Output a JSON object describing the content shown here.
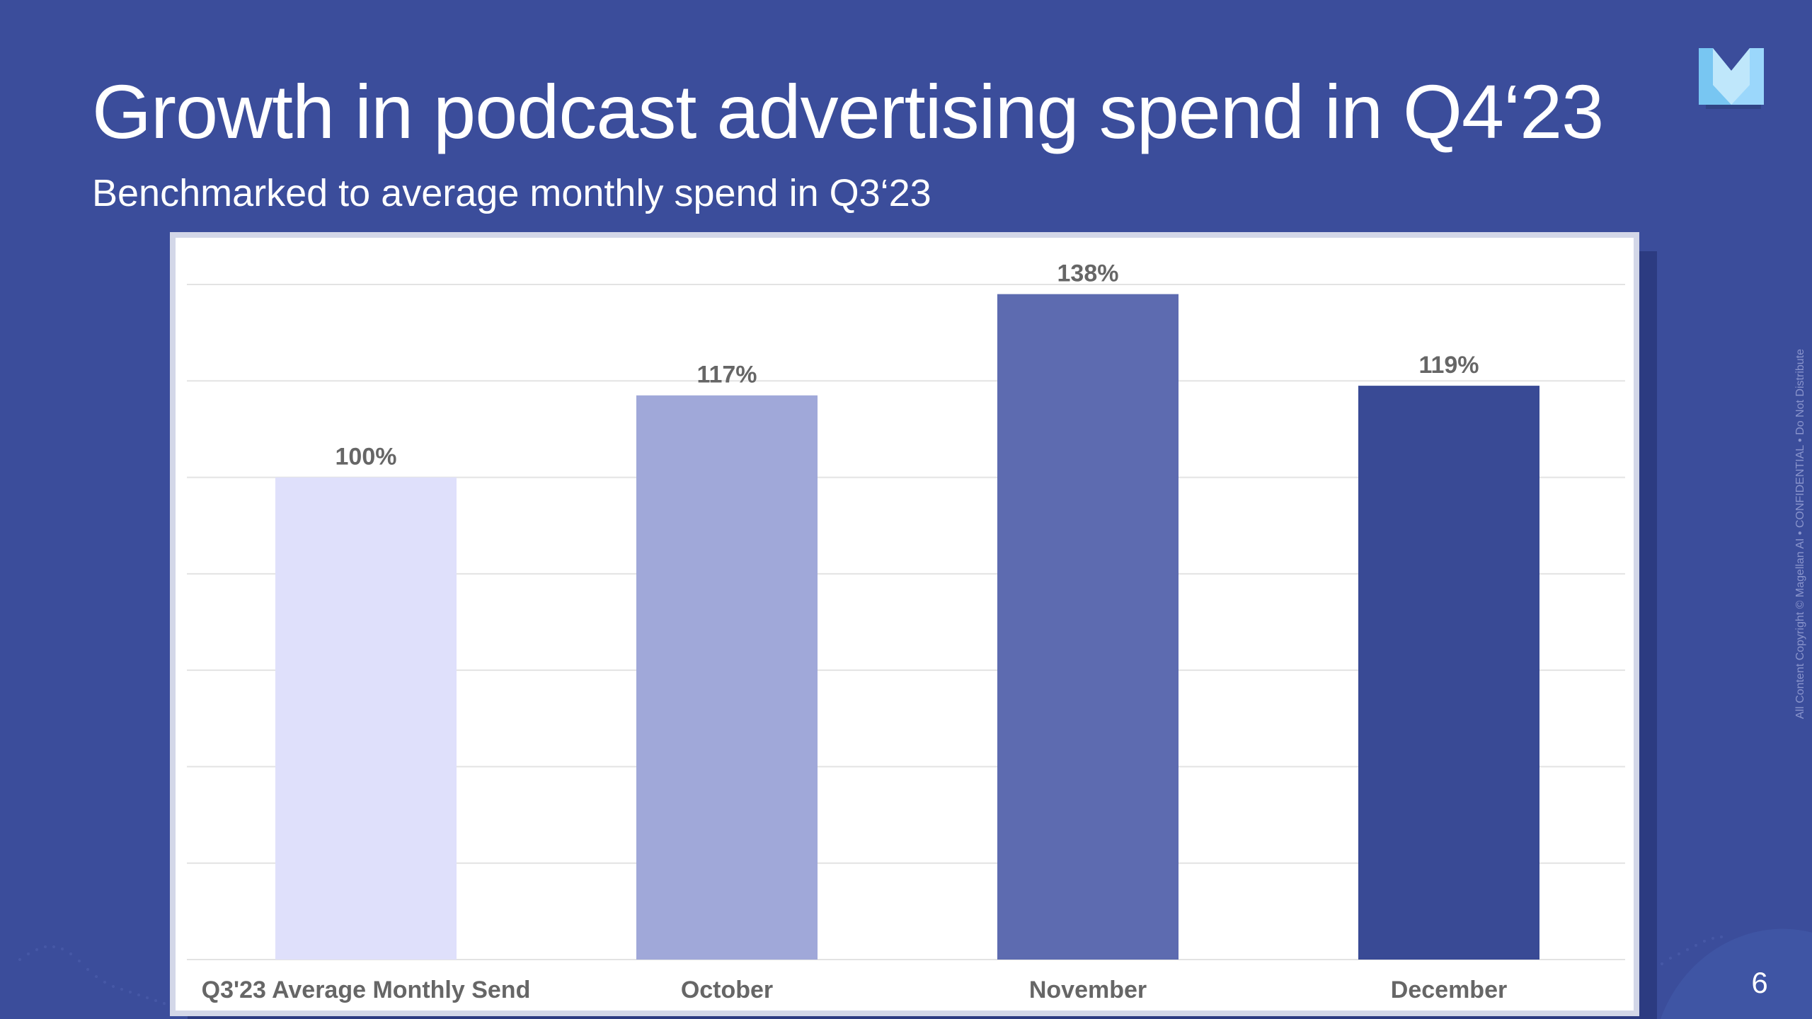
{
  "slide": {
    "title": "Growth in podcast advertising spend in Q4‘23",
    "subtitle": "Benchmarked to average monthly spend in Q3‘23",
    "side_note": "All Content Copyright © Magellan AI  •  CONFIDENTIAL  •  Do Not Distribute",
    "page_number": "6",
    "logo_icon": "magellan-m-logo-icon"
  },
  "colors": {
    "background": "#3b4d9b",
    "chart_background": "#ffffff",
    "chart_border": "#d3d7e8",
    "grid": "#e3e3e3",
    "label": "#666666",
    "bar_q3_average": "#dfe0fb",
    "bar_october": "#a0a8d9",
    "bar_november": "#5d6bb0",
    "bar_december": "#394a95"
  },
  "chart_data": {
    "type": "bar",
    "title": "",
    "xlabel": "",
    "ylabel": "",
    "categories": [
      "Q3'23 Average Monthly Send",
      "October",
      "November",
      "December"
    ],
    "values": [
      100,
      117,
      138,
      119
    ],
    "data_labels": [
      "100%",
      "117%",
      "138%",
      "119%"
    ],
    "ylim": [
      0,
      140
    ],
    "grid": true,
    "legend": "none",
    "series": [
      {
        "name": "Podcast advertising spend",
        "values": [
          100,
          117,
          138,
          119
        ]
      }
    ]
  }
}
